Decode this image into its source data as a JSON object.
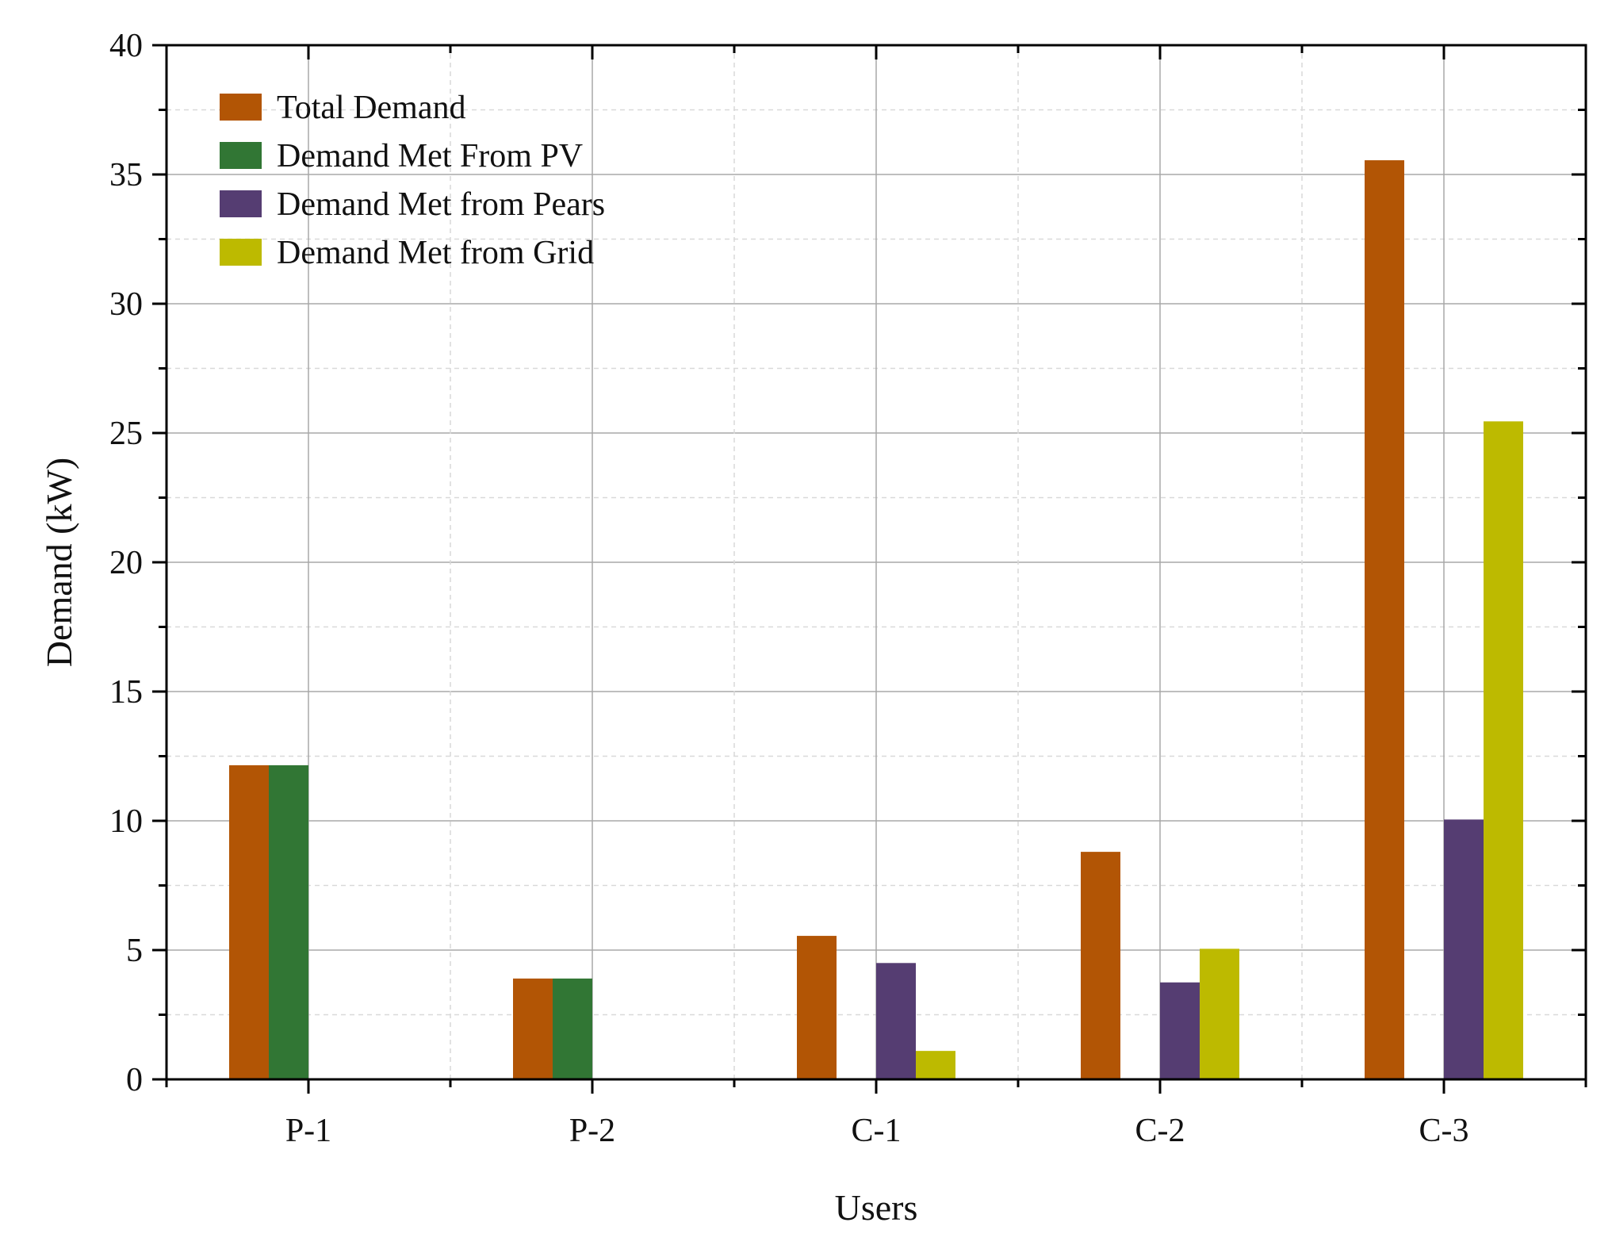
{
  "chart_data": {
    "type": "bar",
    "title": "",
    "xlabel": "Users",
    "ylabel": "Demand (kW)",
    "categories": [
      "P-1",
      "P-2",
      "C-1",
      "C-2",
      "C-3"
    ],
    "ylim": [
      0,
      40
    ],
    "yticks": [
      0,
      5,
      10,
      15,
      20,
      25,
      30,
      35,
      40
    ],
    "ytick_labels": [
      "0",
      "5",
      "10",
      "15",
      "20",
      "25",
      "30",
      "35",
      "40"
    ],
    "grid": true,
    "legend_position": "top-left",
    "series": [
      {
        "name": "Total Demand",
        "color": "#b25505",
        "values": [
          12.15,
          3.9,
          5.55,
          8.8,
          35.55
        ]
      },
      {
        "name": "Demand Met From PV",
        "color": "#317634",
        "values": [
          12.15,
          3.9,
          0,
          0,
          0
        ]
      },
      {
        "name": "Demand Met from Pears",
        "color": "#553d72",
        "values": [
          0,
          0,
          4.5,
          3.75,
          10.05
        ]
      },
      {
        "name": "Demand Met from Grid",
        "color": "#bdba00",
        "values": [
          0,
          0,
          1.1,
          5.05,
          25.45
        ]
      }
    ]
  }
}
